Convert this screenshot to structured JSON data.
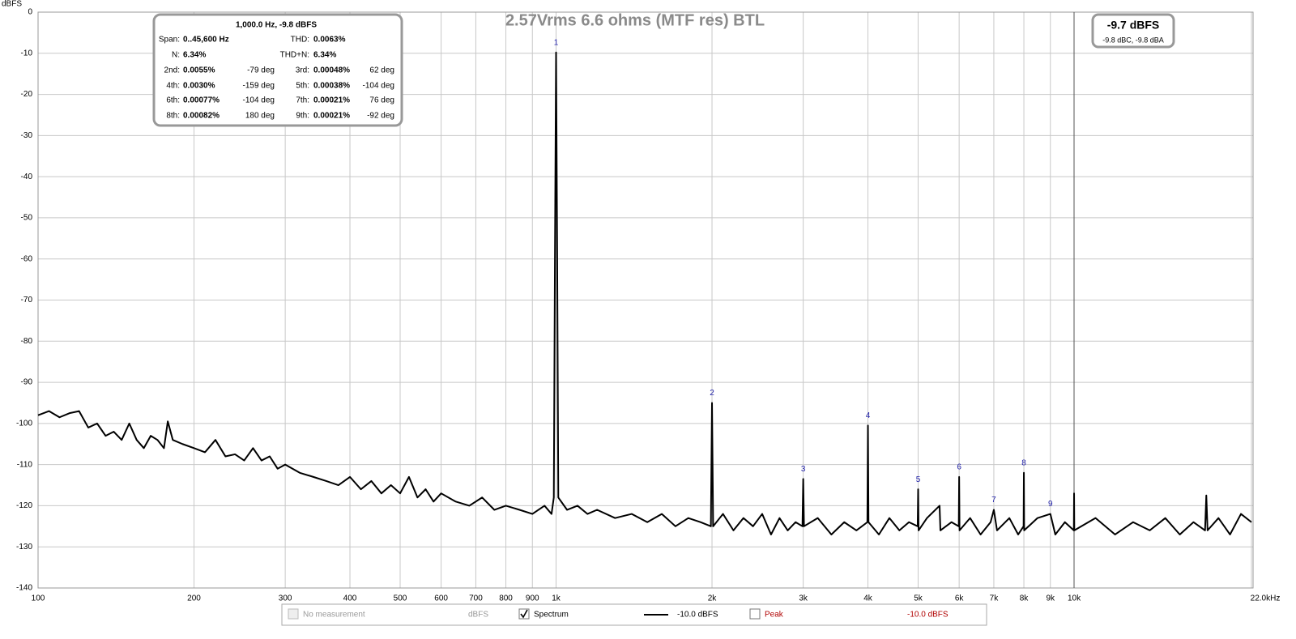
{
  "chart_data": {
    "type": "line",
    "title": "2.57Vrms 6.6 ohms (MTF res) BTL",
    "y_unit": "dBFS",
    "log_x": true,
    "grid": true,
    "xlim": [
      100,
      22000
    ],
    "ylim": [
      -140,
      0
    ],
    "xticks": [
      100,
      200,
      300,
      400,
      500,
      600,
      700,
      800,
      900,
      {
        "value": 1000,
        "label": "1k"
      },
      {
        "value": 2000,
        "label": "2k"
      },
      {
        "value": 3000,
        "label": "3k"
      },
      {
        "value": 4000,
        "label": "4k"
      },
      {
        "value": 5000,
        "label": "5k"
      },
      {
        "value": 6000,
        "label": "6k"
      },
      {
        "value": 7000,
        "label": "7k"
      },
      {
        "value": 8000,
        "label": "8k"
      },
      {
        "value": 9000,
        "label": "9k"
      },
      {
        "value": 10000,
        "label": "10k"
      },
      {
        "value": 22000,
        "label": "22.0kHz"
      }
    ],
    "yticks": [
      0,
      -10,
      -20,
      -30,
      -40,
      -50,
      -60,
      -70,
      -80,
      -90,
      -100,
      -110,
      -120,
      -130,
      -140
    ],
    "series": [
      {
        "name": "Spectrum",
        "color": "#000000",
        "x": [
          100,
          105,
          110,
          115,
          120,
          125,
          130,
          135,
          140,
          145,
          150,
          155,
          160,
          165,
          170,
          175,
          178,
          182,
          190,
          200,
          210,
          220,
          230,
          240,
          250,
          260,
          270,
          280,
          290,
          300,
          320,
          340,
          360,
          380,
          400,
          420,
          440,
          460,
          480,
          500,
          520,
          540,
          560,
          580,
          600,
          640,
          680,
          720,
          760,
          800,
          850,
          900,
          950,
          980,
          990,
          995,
          1000,
          1005,
          1010,
          1050,
          1100,
          1150,
          1200,
          1300,
          1400,
          1500,
          1600,
          1700,
          1800,
          1900,
          1990,
          2000,
          2010,
          2100,
          2200,
          2300,
          2400,
          2500,
          2600,
          2700,
          2800,
          2900,
          2990,
          3000,
          3010,
          3200,
          3400,
          3600,
          3800,
          3990,
          4000,
          4010,
          4200,
          4400,
          4600,
          4800,
          4990,
          5000,
          5010,
          5200,
          5500,
          5520,
          5800,
          5990,
          6000,
          6010,
          6300,
          6600,
          6900,
          7000,
          7100,
          7500,
          7800,
          7990,
          8000,
          8010,
          8500,
          9000,
          9200,
          9600,
          9990,
          10000,
          10010,
          11000,
          12000,
          13000,
          14000,
          15000,
          16000,
          17000,
          17900,
          18000,
          18100,
          19000,
          20000,
          21000,
          22000
        ],
        "values": [
          -98,
          -97,
          -98.5,
          -97.5,
          -97,
          -101,
          -100,
          -103,
          -102,
          -104,
          -100,
          -104,
          -106,
          -103,
          -104,
          -106,
          -99.5,
          -104,
          -105,
          -106,
          -107,
          -104,
          -108,
          -107.5,
          -109,
          -106,
          -109,
          -108,
          -111,
          -110,
          -112,
          -113,
          -114,
          -115,
          -113,
          -116,
          -114,
          -117,
          -115,
          -117,
          -113,
          -118,
          -116,
          -119,
          -117,
          -119,
          -120,
          -118,
          -121,
          -120,
          -121,
          -122,
          -120,
          -122,
          -118,
          -60,
          -9.8,
          -60,
          -118,
          -121,
          -120,
          -122,
          -121,
          -123,
          -122,
          -124,
          -122,
          -125,
          -123,
          -124,
          -125,
          -95,
          -125,
          -122,
          -126,
          -123,
          -125,
          -122,
          -127,
          -123,
          -126,
          -124,
          -125,
          -113.5,
          -125,
          -123,
          -127,
          -124,
          -126,
          -124,
          -100.5,
          -124,
          -127,
          -123,
          -126,
          -124,
          -125,
          -116,
          -126,
          -123,
          -120,
          -126,
          -124,
          -125,
          -113,
          -126,
          -123,
          -127,
          -124,
          -121,
          -126,
          -123,
          -127,
          -125,
          -112,
          -126,
          -123,
          -122,
          -127,
          -124,
          -126,
          -117,
          -126,
          -123,
          -127,
          -124,
          -126,
          -123,
          -127,
          -124,
          -126,
          -117.5,
          -126,
          -123,
          -127,
          -122,
          -124
        ]
      }
    ],
    "marker_color": "#1f1fa8",
    "harmonic_markers": [
      {
        "label": "1",
        "x": 1000,
        "y": -9.8
      },
      {
        "label": "2",
        "x": 2000,
        "y": -95
      },
      {
        "label": "3",
        "x": 3000,
        "y": -113.5
      },
      {
        "label": "4",
        "x": 4000,
        "y": -100.5
      },
      {
        "label": "5",
        "x": 5000,
        "y": -116
      },
      {
        "label": "6",
        "x": 6000,
        "y": -113
      },
      {
        "label": "7",
        "x": 7000,
        "y": -121
      },
      {
        "label": "8",
        "x": 8000,
        "y": -112
      },
      {
        "label": "9",
        "x": 9000,
        "y": -122
      }
    ],
    "info_box": {
      "title": "1,000.0 Hz, -9.8 dBFS",
      "rows": [
        [
          {
            "label": "Span:",
            "value": "0..45,600 Hz"
          },
          {
            "label": "THD:",
            "value": "0.0063%"
          }
        ],
        [
          {
            "label": "N:",
            "value": "6.34%"
          },
          {
            "label": "THD+N:",
            "value": "6.34%"
          }
        ],
        [
          {
            "label": "2nd:",
            "value": "0.0055%",
            "phase": "-79 deg"
          },
          {
            "label": "3rd:",
            "value": "0.00048%",
            "phase": "62 deg"
          }
        ],
        [
          {
            "label": "4th:",
            "value": "0.0030%",
            "phase": "-159 deg"
          },
          {
            "label": "5th:",
            "value": "0.00038%",
            "phase": "-104 deg"
          }
        ],
        [
          {
            "label": "6th:",
            "value": "0.00077%",
            "phase": "-104 deg"
          },
          {
            "label": "7th:",
            "value": "0.00021%",
            "phase": "76 deg"
          }
        ],
        [
          {
            "label": "8th:",
            "value": "0.00082%",
            "phase": "180 deg"
          },
          {
            "label": "9th:",
            "value": "0.00021%",
            "phase": "-92 deg"
          }
        ]
      ]
    },
    "level_box": {
      "value": "-9.7 dBFS",
      "detail": "-9.8 dBC, -9.8 dBA"
    },
    "status_bar": {
      "no_measurement": "No measurement",
      "unit": "dBFS",
      "spectrum_level": "-10.0 dBFS",
      "peak": "Peak",
      "peak_level": "-10.0 dBFS"
    }
  }
}
